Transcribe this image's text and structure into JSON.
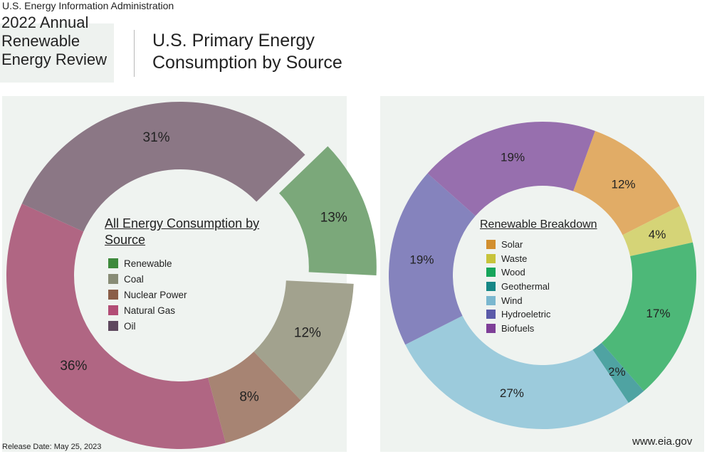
{
  "header": {
    "agency": "U.S. Energy Information Administration",
    "report_title": "2022 Annual\nRenewable\nEnergy Review",
    "main_title": "U.S. Primary Energy\nConsumption by Source"
  },
  "footer": {
    "release_date": "Release Date: May 25, 2023",
    "website": "www.eia.gov"
  },
  "colors": {
    "panel_background": "#eff3f0",
    "renewable": "#7ba87a",
    "coal": "#a2a28e",
    "nuclear": "#a78473",
    "natural_gas": "#b06683",
    "oil": "#8b7785",
    "solar": "#e1ac66",
    "waste": "#d5d477",
    "wood": "#4db878",
    "geothermal": "#4fa3a2",
    "wind": "#9ccbdc",
    "hydroelectric": "#8583bd",
    "biofuels": "#976fae"
  },
  "chart_data": [
    {
      "type": "pie",
      "title": "All Energy Consumption by Source",
      "style": "donut",
      "exploded_slice": "Renewable",
      "labels": [
        "Renewable",
        "Coal",
        "Nuclear Power",
        "Natural Gas",
        "Oil"
      ],
      "value_labels": [
        "13%",
        "12%",
        "8%",
        "36%",
        "31%"
      ],
      "values": [
        13,
        12,
        8,
        36,
        31
      ],
      "legend_colors": [
        "#3e8a3c",
        "#888c76",
        "#8a5e48",
        "#b24d76",
        "#5e485e"
      ],
      "slice_colors": [
        "#7ba87a",
        "#a2a28e",
        "#a78473",
        "#b06683",
        "#8b7785"
      ]
    },
    {
      "type": "pie",
      "title": "Renewable Breakdown",
      "style": "donut",
      "labels": [
        "Solar",
        "Waste",
        "Wood",
        "Geothermal",
        "Wind",
        "Hydroeletric",
        "Biofuels"
      ],
      "value_labels": [
        "12%",
        "4%",
        "17%",
        "2%",
        "27%",
        "19%",
        "19%"
      ],
      "values": [
        12,
        4,
        17,
        2,
        27,
        19,
        19
      ],
      "legend_colors": [
        "#d28f2f",
        "#c7c33a",
        "#16a55b",
        "#168786",
        "#7ab7cf",
        "#5b5ba9",
        "#7e3f98"
      ],
      "slice_colors": [
        "#e1ac66",
        "#d5d477",
        "#4db878",
        "#4fa3a2",
        "#9ccbdc",
        "#8583bd",
        "#976fae"
      ]
    }
  ]
}
